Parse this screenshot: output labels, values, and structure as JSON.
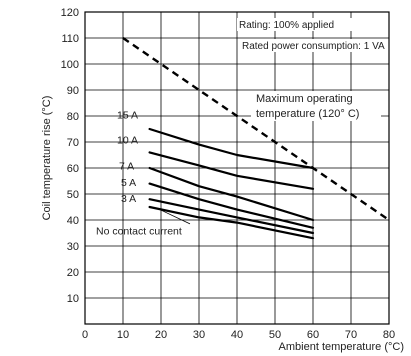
{
  "chart_data": {
    "type": "line",
    "xlabel": "Ambient temperature (°C)",
    "ylabel": "Coil temperature rise (°C)",
    "xlim": [
      0,
      80
    ],
    "ylim": [
      0,
      120
    ],
    "x_ticks": [
      0,
      10,
      20,
      30,
      40,
      50,
      60,
      70,
      80
    ],
    "y_ticks": [
      10,
      20,
      30,
      40,
      50,
      60,
      70,
      80,
      90,
      100,
      110,
      120
    ],
    "grid": true,
    "annotations": {
      "rating": "Rating: 100% applied",
      "power": "Rated power consumption: 1 VA",
      "max_temp_line1": "Maximum operating",
      "max_temp_line2": "temperature (120° C)"
    },
    "max_operating_line": {
      "x": [
        10,
        80
      ],
      "y": [
        110,
        40
      ]
    },
    "series": [
      {
        "name": "15 A",
        "x": [
          17,
          30,
          40,
          60
        ],
        "y": [
          75,
          69,
          65,
          60
        ]
      },
      {
        "name": "10 A",
        "x": [
          17,
          30,
          40,
          60
        ],
        "y": [
          66,
          61,
          57,
          52
        ]
      },
      {
        "name": "7 A",
        "x": [
          17,
          30,
          40,
          60
        ],
        "y": [
          60,
          53,
          49,
          40
        ]
      },
      {
        "name": "5 A",
        "x": [
          17,
          30,
          40,
          60
        ],
        "y": [
          54,
          48,
          44,
          37
        ]
      },
      {
        "name": "3 A",
        "x": [
          17,
          30,
          40,
          60
        ],
        "y": [
          48,
          44,
          41,
          35
        ]
      },
      {
        "name": "No contact current",
        "x": [
          17,
          30,
          40,
          60
        ],
        "y": [
          45,
          41,
          39,
          33
        ]
      }
    ]
  }
}
